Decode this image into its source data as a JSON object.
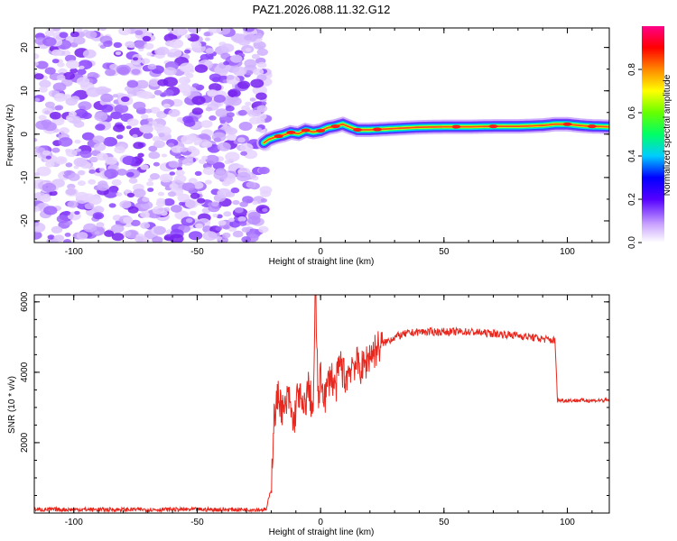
{
  "title": "PAZ1.2026.088.11.32.G12",
  "colors": {
    "snr_line": "#e8281e",
    "frame": "#000000",
    "background": "#ffffff"
  },
  "chart_data": [
    {
      "type": "heatmap",
      "xlabel": "Height of straight line (km)",
      "ylabel": "Frequency (Hz)",
      "xlim": [
        -116,
        117
      ],
      "ylim": [
        -25,
        24.5
      ],
      "xticks": [
        -100,
        -50,
        0,
        50,
        100
      ],
      "yticks": [
        -20,
        -10,
        0,
        10,
        20
      ],
      "noise_region_x": [
        -116,
        -23
      ],
      "ridge": {
        "x": [
          -23,
          -21,
          -18,
          -15,
          -12,
          -9,
          -6,
          -3,
          0,
          3,
          6,
          9,
          12,
          15,
          20,
          30,
          40,
          50,
          60,
          70,
          80,
          90,
          95,
          100,
          105,
          110,
          117
        ],
        "y": [
          -2,
          -1.2,
          -0.6,
          -0.2,
          0.4,
          0.1,
          0.9,
          0.5,
          0.8,
          1.5,
          1.8,
          2.3,
          1.6,
          1.0,
          1.0,
          1.3,
          1.6,
          1.7,
          1.7,
          1.8,
          1.8,
          2.0,
          2.3,
          2.3,
          2.0,
          1.8,
          1.7
        ]
      },
      "colorbar": {
        "label": "Normalized spectral amplitude",
        "range": [
          0,
          1
        ],
        "ticks": [
          "0.0",
          "0.2",
          "0.4",
          "0.6",
          "0.8"
        ],
        "tick_values": [
          0.0,
          0.2,
          0.4,
          0.6,
          0.8
        ]
      }
    },
    {
      "type": "line",
      "xlabel": "Height of straight line (km)",
      "ylabel": "SNR (10 * v/v)",
      "xlim": [
        -116,
        117
      ],
      "ylim": [
        0,
        6200
      ],
      "xticks": [
        -100,
        -50,
        0,
        50,
        100
      ],
      "yticks": [
        2000,
        4000,
        6000
      ],
      "series": [
        {
          "name": "SNR",
          "x": [
            -116,
            -24,
            -22,
            -20,
            -19,
            -17,
            -15,
            -13,
            -11,
            -9,
            -7,
            -5,
            -3,
            -2,
            -1,
            0,
            2,
            4,
            6,
            8,
            10,
            13,
            17,
            20,
            25,
            30,
            35,
            40,
            50,
            60,
            70,
            80,
            90,
            95,
            96,
            100,
            110,
            117
          ],
          "y": [
            100,
            100,
            100,
            700,
            2600,
            3400,
            2800,
            3300,
            2500,
            3500,
            2800,
            3600,
            2900,
            6000,
            3200,
            3800,
            3300,
            4000,
            3500,
            4300,
            3800,
            4300,
            4100,
            4500,
            4800,
            5000,
            5100,
            5150,
            5150,
            5150,
            5100,
            5050,
            4950,
            4900,
            3200,
            3200,
            3200,
            3200
          ]
        }
      ]
    }
  ]
}
